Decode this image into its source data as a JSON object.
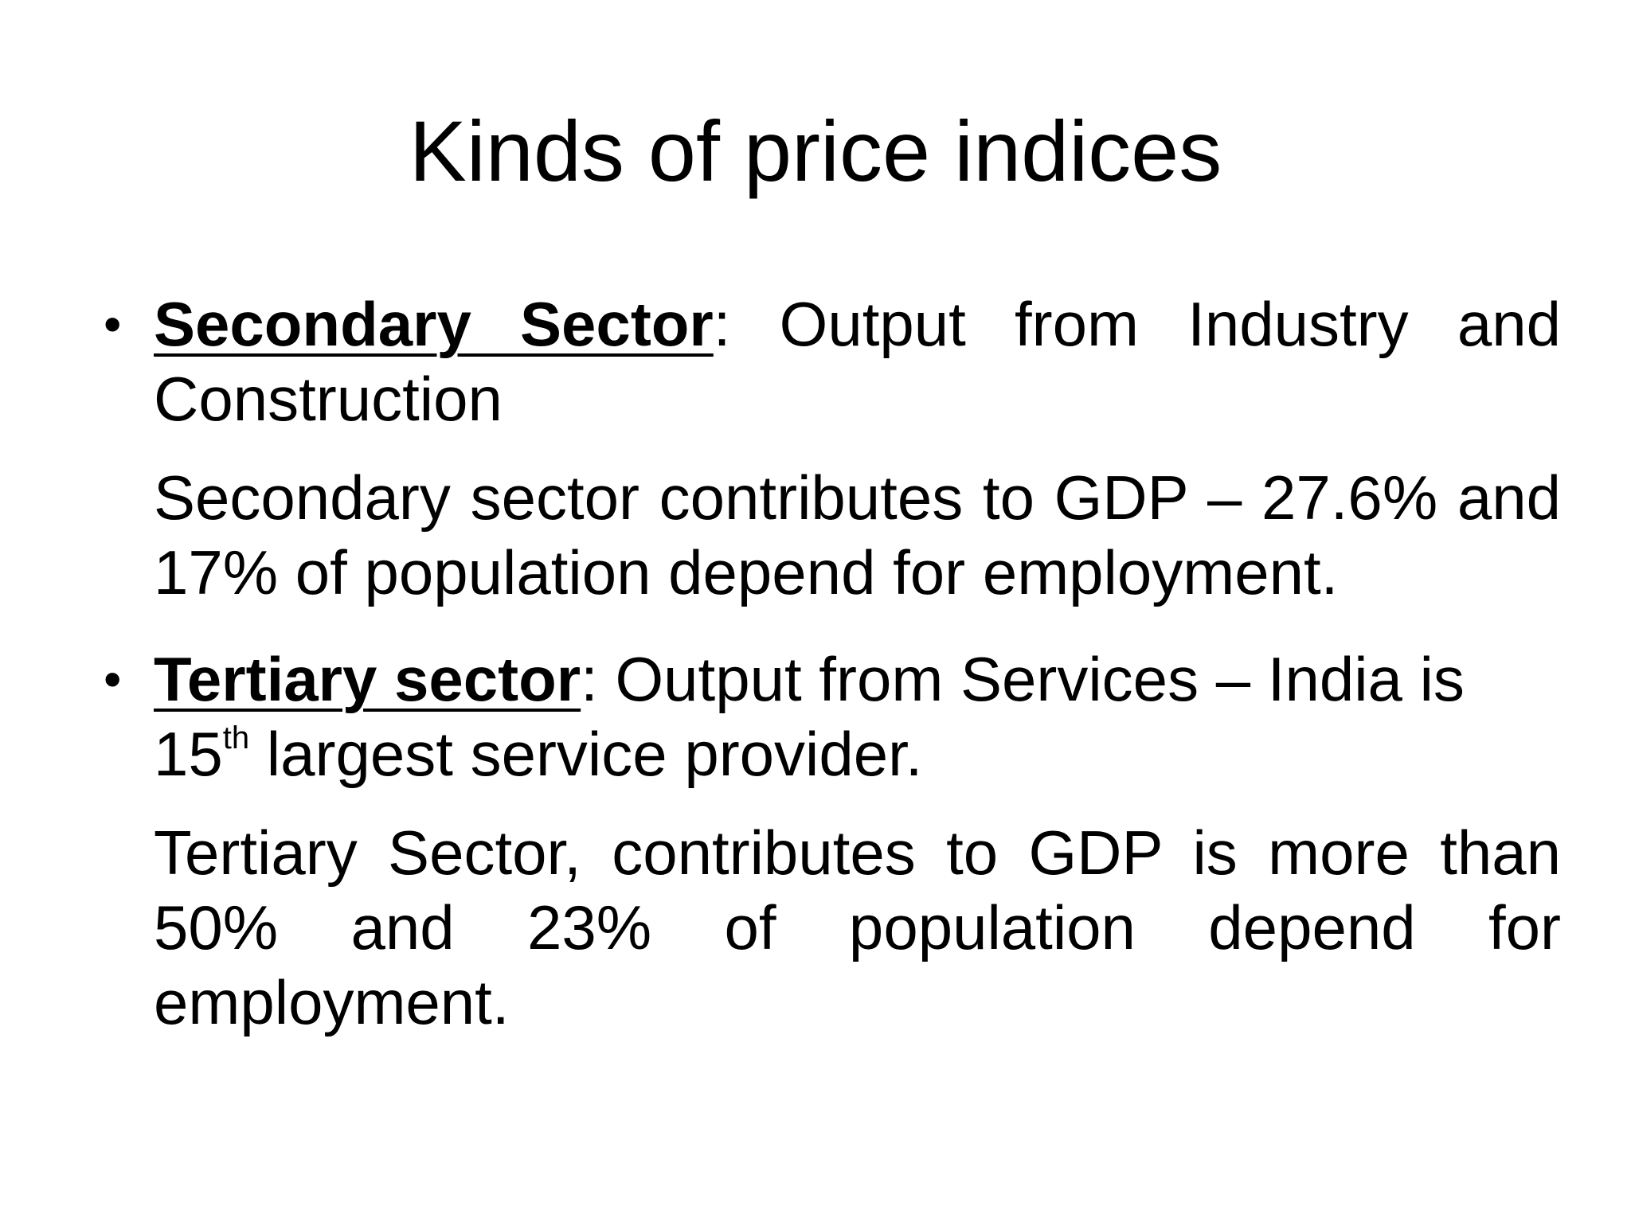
{
  "slide": {
    "title": "Kinds of price indices",
    "bullets": [
      {
        "term": "Secondary Sector",
        "separator": ":",
        "text": " Output from Industry and Construction",
        "detail": "Secondary sector contributes to GDP – 27.6% and 17% of population depend for employment."
      },
      {
        "term": "Tertiary sector",
        "separator": ":",
        "text": " Output from Services – India is",
        "text_num": "15",
        "text_sup": "th",
        "text_after": " largest service provider.",
        "detail": "Tertiary Sector, contributes to GDP is more than 50% and 23% of population depend for employment."
      }
    ],
    "bullet_symbol": "•"
  }
}
